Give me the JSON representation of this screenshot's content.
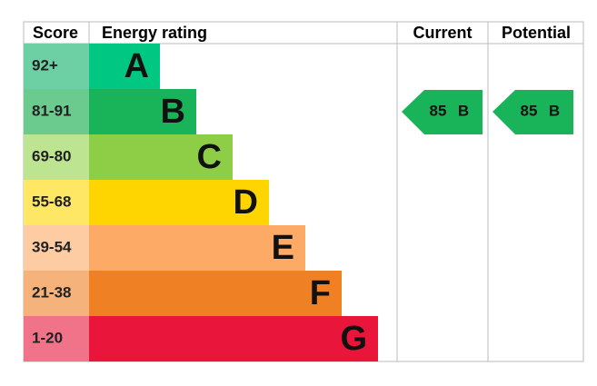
{
  "header": {
    "score": "Score",
    "energy_rating": "Energy rating",
    "current": "Current",
    "potential": "Potential"
  },
  "bands": [
    {
      "score": "92+",
      "rating": "A",
      "color": "#00c781",
      "score_color": "#6cd0a4"
    },
    {
      "score": "81-91",
      "rating": "B",
      "color": "#19b459",
      "score_color": "#6bcb8e"
    },
    {
      "score": "69-80",
      "rating": "C",
      "color": "#8dce46",
      "score_color": "#bde491"
    },
    {
      "score": "55-68",
      "rating": "D",
      "color": "#ffd500",
      "score_color": "#ffe766"
    },
    {
      "score": "39-54",
      "rating": "E",
      "color": "#fcaa65",
      "score_color": "#fdcca3"
    },
    {
      "score": "21-38",
      "rating": "F",
      "color": "#ef8023",
      "score_color": "#f5b27b"
    },
    {
      "score": "1-20",
      "rating": "G",
      "color": "#e9153b",
      "score_color": "#f0738a"
    }
  ],
  "current": {
    "score": 85,
    "rating": "B"
  },
  "potential": {
    "score": 85,
    "rating": "B"
  }
}
